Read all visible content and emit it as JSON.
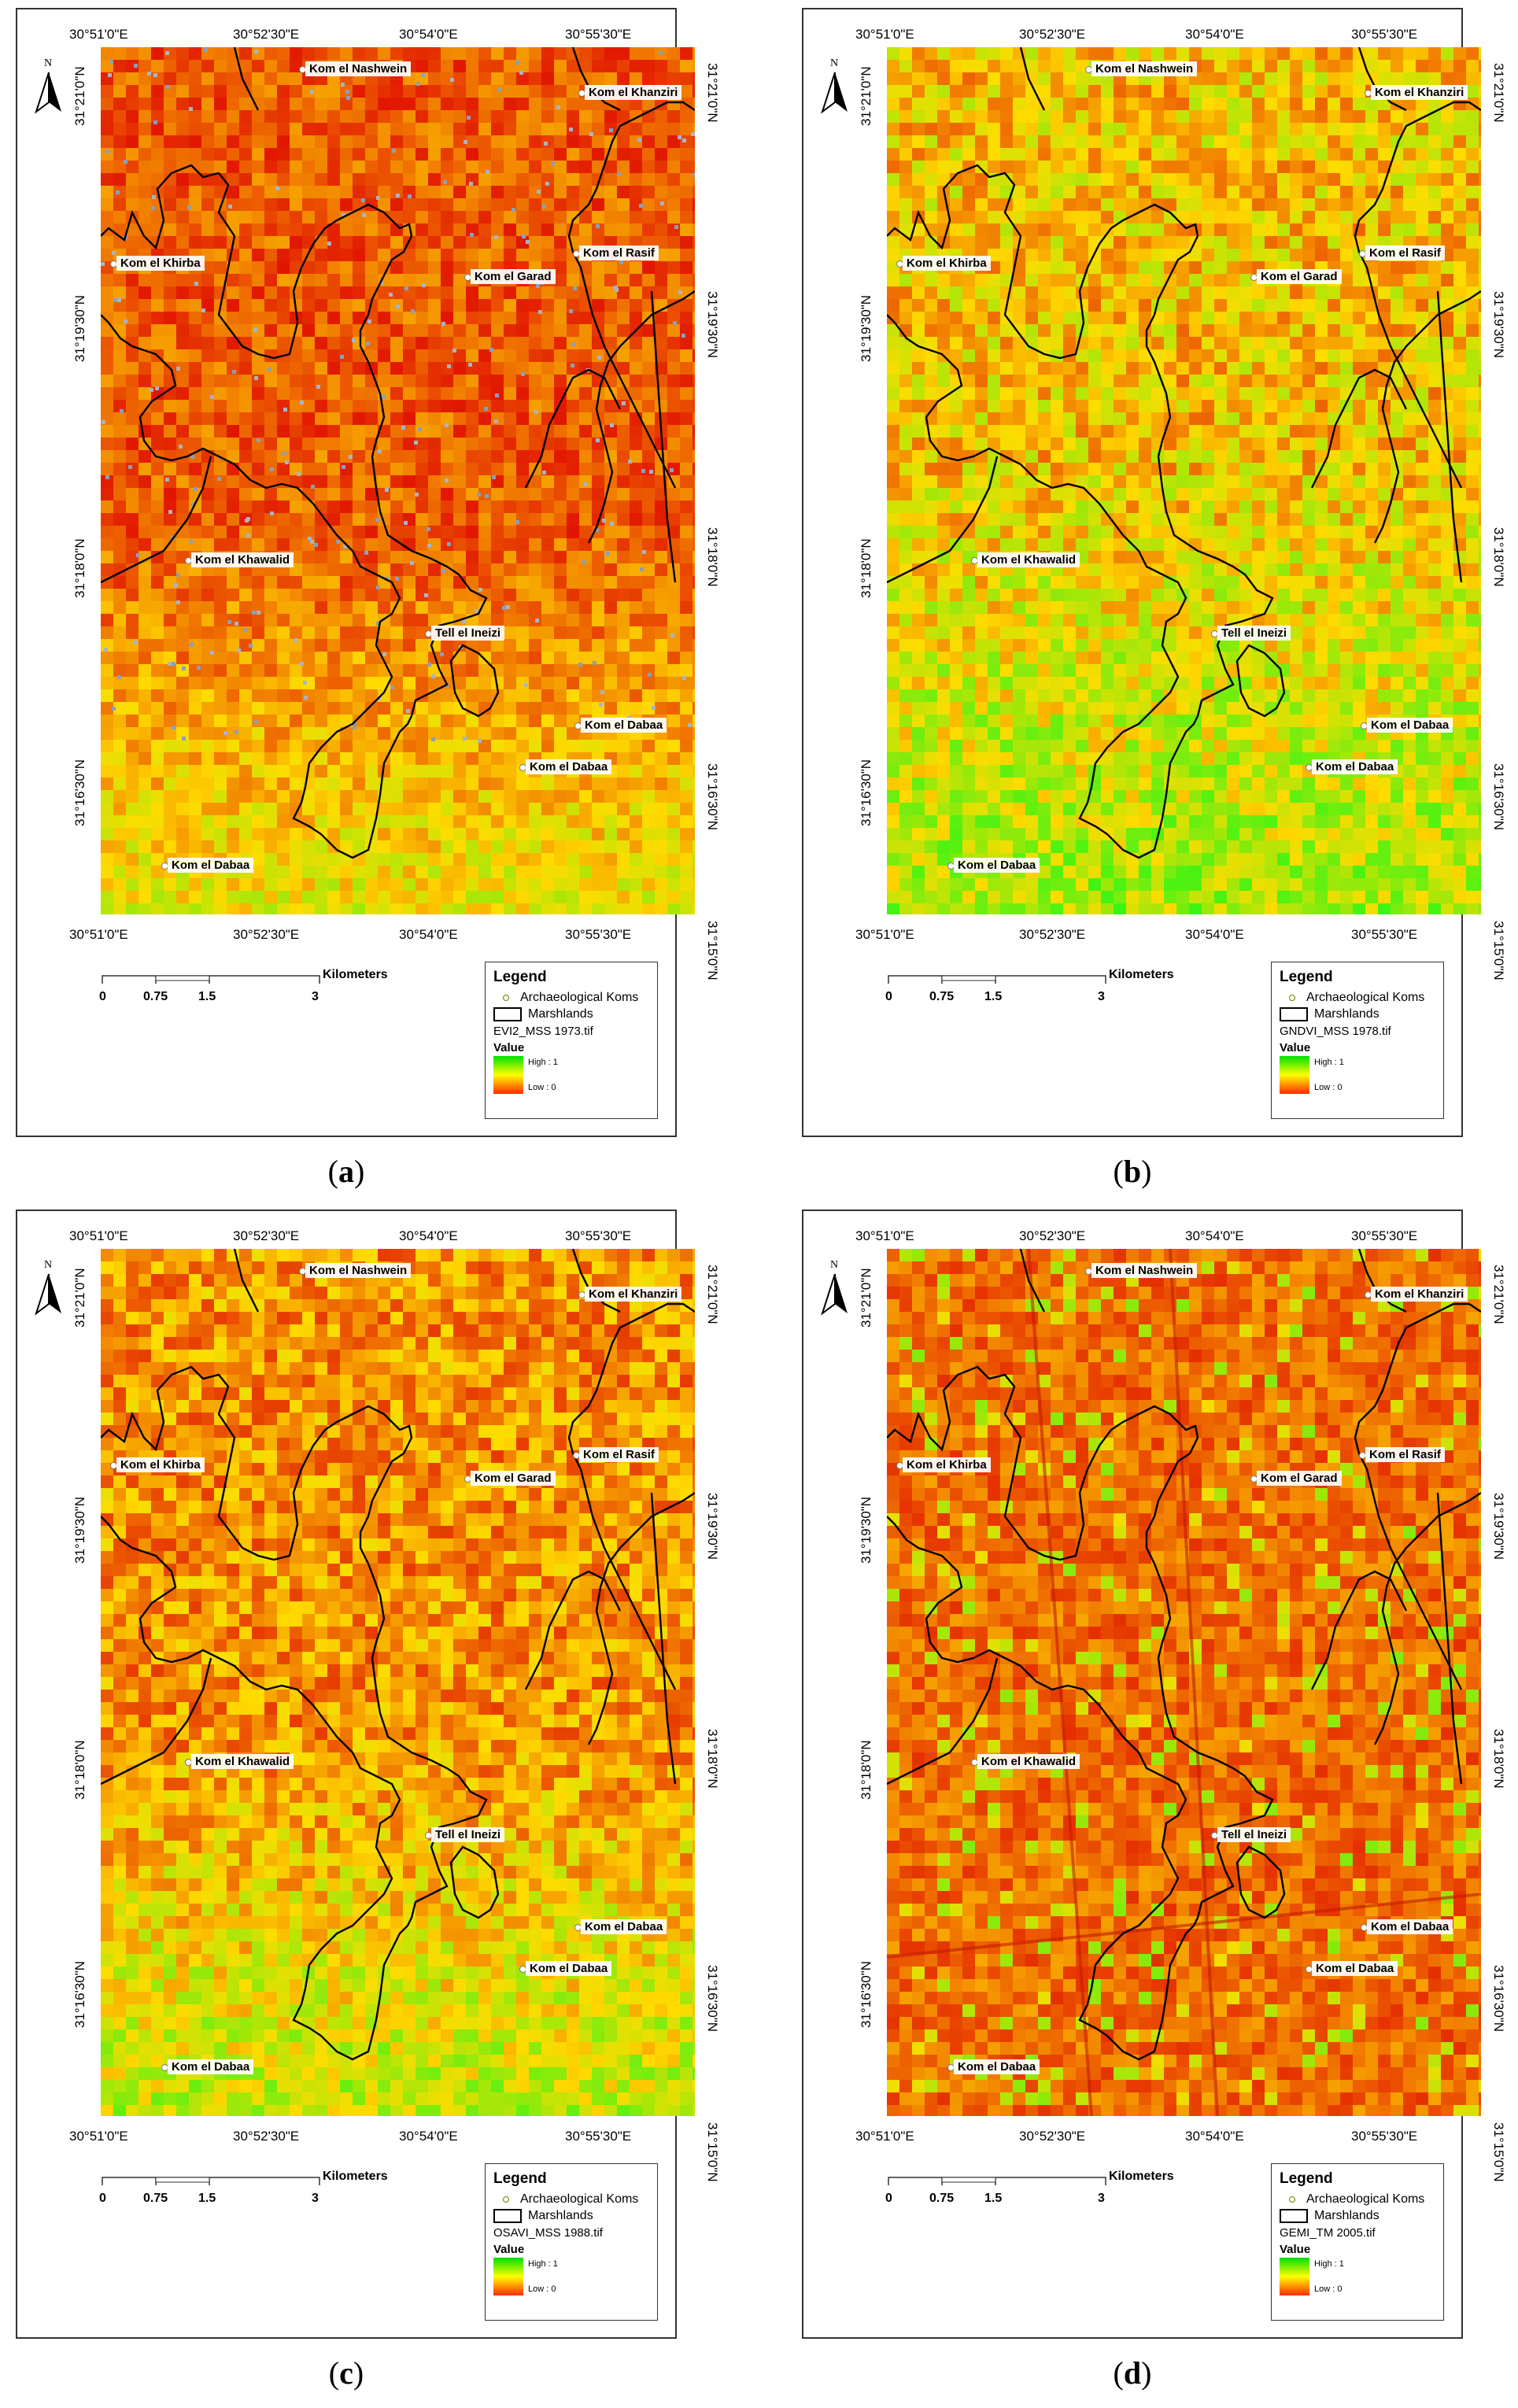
{
  "panels": [
    {
      "caption": "a",
      "raster_file": "EVI2_MSS 1973.tif",
      "palette": "evi2"
    },
    {
      "caption": "b",
      "raster_file": "GNDVI_MSS 1978.tif",
      "palette": "gndvi"
    },
    {
      "caption": "c",
      "raster_file": "OSAVI_MSS 1988.tif",
      "palette": "osavi"
    },
    {
      "caption": "d",
      "raster_file": "GEMI_TM 2005.tif",
      "palette": "gemi"
    }
  ],
  "axes": {
    "top_ticks": [
      "30°51'0\"E",
      "30°52'30\"E",
      "30°54'0\"E",
      "30°55'30\"E"
    ],
    "bottom_ticks": [
      "30°51'0\"E",
      "30°52'30\"E",
      "30°54'0\"E",
      "30°55'30\"E"
    ],
    "left_ticks": [
      "31°21'0\"N",
      "31°19'30\"N",
      "31°18'0\"N",
      "31°16'30\"N"
    ],
    "right_ticks": [
      "31°21'0\"N",
      "31°19'30\"N",
      "31°18'0\"N",
      "31°16'30\"N",
      "31°15'0\"N"
    ]
  },
  "north_label": "N",
  "sites": [
    {
      "name": "Kom el Nashwein"
    },
    {
      "name": "Kom el Khanziri"
    },
    {
      "name": "Kom el Khirba"
    },
    {
      "name": "Kom el Garad"
    },
    {
      "name": "Kom el Rasif"
    },
    {
      "name": "Kom el Khawalid"
    },
    {
      "name": "Tell el Ineizi"
    },
    {
      "name": "Kom el Dabaa"
    },
    {
      "name": "Kom el Dabaa"
    },
    {
      "name": "Kom el Dabaa"
    }
  ],
  "scale": {
    "labels": [
      "0",
      "0.75",
      "1.5",
      "3"
    ],
    "unit": "Kilometers"
  },
  "legend": {
    "title": "Legend",
    "koms_label": "Archaeological Koms",
    "marsh_label": "Marshlands",
    "value_label": "Value",
    "high_label": "High : 1",
    "low_label": "Low : 0",
    "colors": {
      "high": "#00e000",
      "mid": "#ffff00",
      "low": "#ff2a00",
      "marsh_outline": "#000000"
    }
  }
}
